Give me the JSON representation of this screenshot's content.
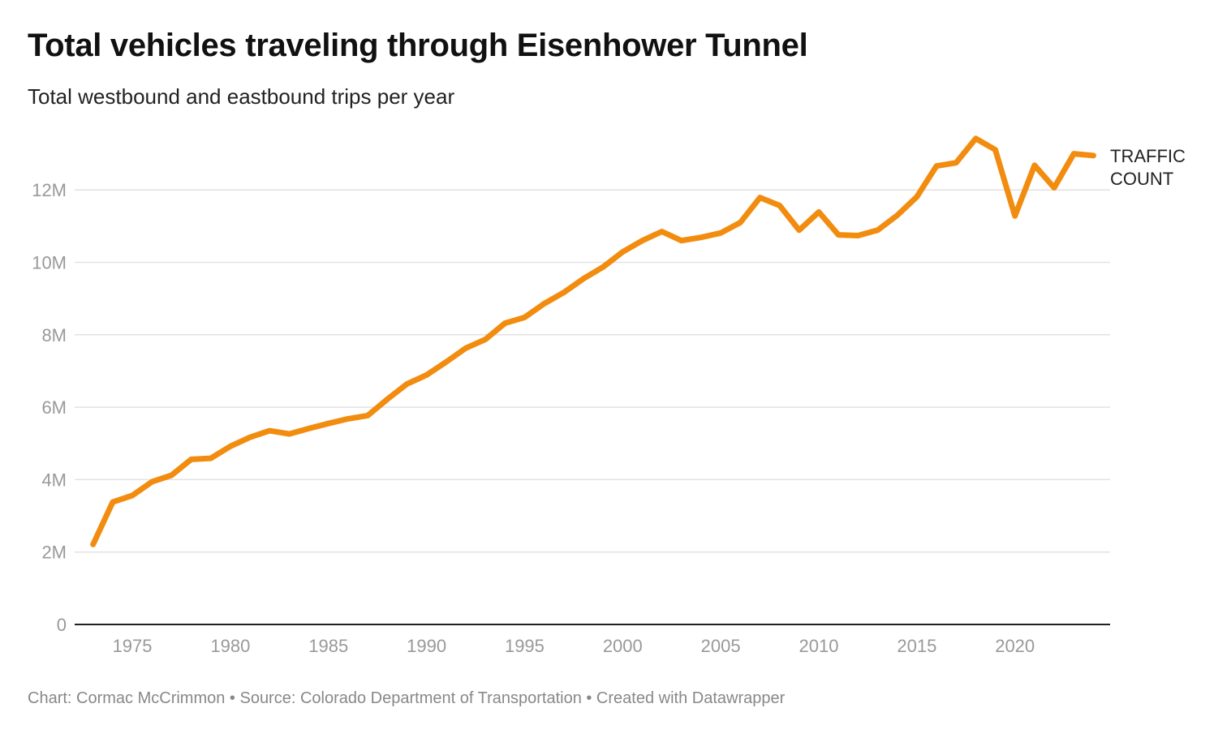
{
  "chart_data": {
    "type": "line",
    "title": "Total vehicles traveling through Eisenhower Tunnel",
    "subtitle": "Total westbound and eastbound trips per year",
    "footer": "Chart: Cormac McCrimmon • Source: Colorado Department of Transportation  • Created with Datawrapper",
    "xlabel": "",
    "ylabel": "",
    "x_ticks": [
      "1975",
      "1980",
      "1985",
      "1990",
      "1995",
      "2000",
      "2005",
      "2010",
      "2015",
      "2020"
    ],
    "y_ticks": [
      {
        "value": 0,
        "label": "0"
      },
      {
        "value": 2000000,
        "label": "2M"
      },
      {
        "value": 4000000,
        "label": "4M"
      },
      {
        "value": 6000000,
        "label": "6M"
      },
      {
        "value": 8000000,
        "label": "8M"
      },
      {
        "value": 10000000,
        "label": "10M"
      },
      {
        "value": 12000000,
        "label": "12M"
      }
    ],
    "xlim": [
      1970.9,
      2024
    ],
    "ylim": [
      0,
      12000000
    ],
    "grid": true,
    "color": "#f28c0f",
    "series": [
      {
        "name": "TRAFFIC COUNT",
        "x": [
          1973,
          1974,
          1975,
          1976,
          1977,
          1978,
          1979,
          1980,
          1981,
          1982,
          1983,
          1984,
          1985,
          1986,
          1987,
          1988,
          1989,
          1990,
          1991,
          1992,
          1993,
          1994,
          1995,
          1996,
          1997,
          1998,
          1999,
          2000,
          2001,
          2002,
          2003,
          2004,
          2005,
          2006,
          2007,
          2008,
          2009,
          2010,
          2011,
          2012,
          2013,
          2014,
          2015,
          2016,
          2017,
          2018,
          2019,
          2020,
          2021,
          2022,
          2023,
          2024
        ],
        "values": [
          2210000,
          3380000,
          3560000,
          3940000,
          4120000,
          4560000,
          4590000,
          4920000,
          5170000,
          5350000,
          5260000,
          5410000,
          5550000,
          5680000,
          5770000,
          6220000,
          6640000,
          6890000,
          7250000,
          7630000,
          7870000,
          8320000,
          8480000,
          8860000,
          9170000,
          9550000,
          9870000,
          10290000,
          10600000,
          10850000,
          10600000,
          10690000,
          10810000,
          11100000,
          11790000,
          11570000,
          10890000,
          11390000,
          10760000,
          10740000,
          10890000,
          11300000,
          11810000,
          12660000,
          12750000,
          13420000,
          13110000,
          11280000,
          12680000,
          12060000,
          13000000,
          12950000
        ]
      }
    ],
    "series_label": [
      "TRAFFIC",
      "COUNT"
    ]
  }
}
